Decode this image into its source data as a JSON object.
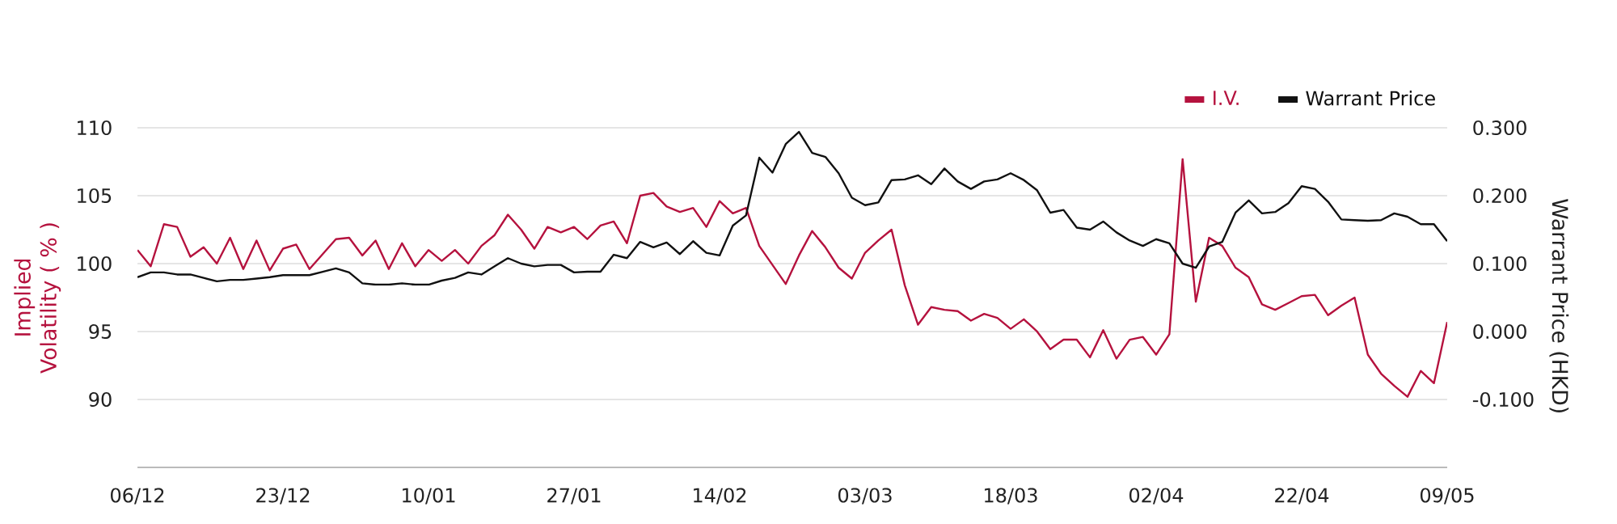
{
  "chart_data": {
    "type": "line",
    "categories": [
      "06/12",
      null,
      null,
      null,
      null,
      null,
      null,
      null,
      null,
      null,
      null,
      "23/12",
      null,
      null,
      null,
      null,
      null,
      null,
      null,
      null,
      null,
      null,
      "10/01",
      null,
      null,
      null,
      null,
      null,
      null,
      null,
      null,
      null,
      null,
      "27/01",
      null,
      null,
      null,
      null,
      null,
      null,
      null,
      null,
      null,
      null,
      "14/02",
      null,
      null,
      null,
      null,
      null,
      null,
      null,
      null,
      null,
      null,
      "03/03",
      null,
      null,
      null,
      null,
      null,
      null,
      null,
      null,
      null,
      null,
      "18/03",
      null,
      null,
      null,
      null,
      null,
      null,
      null,
      null,
      null,
      null,
      "02/04",
      null,
      null,
      null,
      null,
      null,
      null,
      null,
      null,
      null,
      null,
      "22/04",
      null,
      null,
      null,
      null,
      null,
      null,
      null,
      null,
      null,
      null,
      "09/05"
    ],
    "ylabel": "Implied Volatility ( % )",
    "y2label": "Warrant Price (HKD)",
    "ylim": [
      85,
      110
    ],
    "yticks": [
      90,
      95,
      100,
      105,
      110
    ],
    "y2lim": [
      -0.2,
      0.3
    ],
    "y2ticks": [
      {
        "value": -0.1,
        "label": "-0.100"
      },
      {
        "value": 0.0,
        "label": "0.000"
      },
      {
        "value": 0.1,
        "label": "0.100"
      },
      {
        "value": 0.2,
        "label": "0.200"
      },
      {
        "value": 0.3,
        "label": "0.300"
      }
    ],
    "grid": "y",
    "legend": "top right",
    "series": [
      {
        "name": "I.V.",
        "color": "#b5123e",
        "values": [
          101.0,
          99.8,
          102.9,
          102.7,
          100.5,
          101.2,
          100.0,
          101.9,
          99.6,
          101.7,
          99.5,
          101.1,
          101.4,
          99.6,
          100.7,
          101.8,
          101.9,
          100.6,
          101.7,
          99.6,
          101.5,
          99.8,
          101.0,
          100.2,
          101.0,
          100.0,
          101.3,
          102.1,
          103.6,
          102.5,
          101.1,
          102.7,
          102.3,
          102.7,
          101.8,
          102.8,
          103.1,
          101.5,
          105.0,
          105.2,
          104.2,
          103.8,
          104.1,
          102.7,
          104.6,
          103.7,
          104.1,
          101.3,
          99.9,
          98.5,
          100.6,
          102.4,
          101.2,
          99.7,
          98.9,
          100.8,
          101.7,
          102.5,
          98.4,
          95.5,
          96.8,
          96.6,
          96.5,
          95.8,
          96.3,
          96.0,
          95.2,
          95.9,
          95.0,
          93.7,
          94.4,
          94.4,
          93.1,
          95.1,
          93.0,
          94.4,
          94.6,
          93.3,
          94.8,
          107.7,
          97.2,
          101.9,
          101.3,
          99.7,
          99.0,
          97.0,
          96.6,
          97.1,
          97.6,
          97.7,
          96.2,
          96.9,
          97.5,
          93.3,
          91.9,
          91.0,
          90.2,
          92.1,
          91.2,
          95.7
        ]
      },
      {
        "name": "Warrant Price",
        "color": "#111111",
        "axis": "y2",
        "values": [
          0.08,
          0.087,
          0.087,
          0.084,
          0.084,
          0.079,
          0.074,
          0.076,
          0.076,
          0.078,
          0.08,
          0.083,
          0.083,
          0.083,
          0.088,
          0.093,
          0.087,
          0.071,
          0.069,
          0.069,
          0.071,
          0.069,
          0.069,
          0.075,
          0.079,
          0.087,
          0.084,
          0.096,
          0.108,
          0.1,
          0.096,
          0.098,
          0.098,
          0.087,
          0.088,
          0.088,
          0.113,
          0.108,
          0.132,
          0.124,
          0.131,
          0.114,
          0.133,
          0.116,
          0.112,
          0.156,
          0.171,
          0.256,
          0.234,
          0.276,
          0.294,
          0.263,
          0.257,
          0.233,
          0.197,
          0.186,
          0.19,
          0.223,
          0.224,
          0.23,
          0.217,
          0.24,
          0.221,
          0.21,
          0.221,
          0.224,
          0.233,
          0.223,
          0.208,
          0.175,
          0.179,
          0.153,
          0.15,
          0.162,
          0.146,
          0.134,
          0.126,
          0.136,
          0.13,
          0.1,
          0.094,
          0.125,
          0.132,
          0.175,
          0.193,
          0.174,
          0.176,
          0.189,
          0.214,
          0.21,
          0.191,
          0.165,
          0.164,
          0.163,
          0.164,
          0.174,
          0.169,
          0.158,
          0.158,
          0.133
        ]
      }
    ]
  }
}
